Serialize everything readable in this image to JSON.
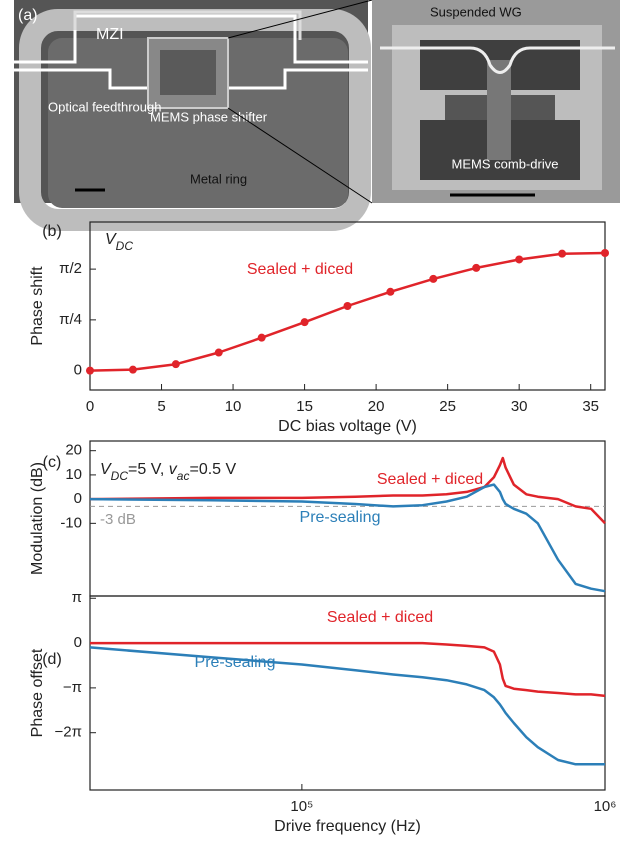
{
  "panel_a": {
    "panel_label": "(a)",
    "labels": [
      "MZI",
      "Optical feedthrough",
      "MEMS phase shifter",
      "Metal ring",
      "Suspended WG",
      "MEMS comb-drive"
    ]
  },
  "chart_data": [
    {
      "type": "line",
      "panel_label": "(b)",
      "annotation": [
        {
          "text": "V",
          "italic": true
        },
        {
          "text": "DC",
          "italic": true,
          "sub": true
        }
      ],
      "x_label": "DC bias voltage (V)",
      "y_label": "Phase shift",
      "x": [
        0,
        3,
        6,
        9,
        12,
        15,
        18,
        21,
        24,
        27,
        30,
        33,
        36
      ],
      "series": [
        {
          "name": "Sealed + diced",
          "color": "#e0242a",
          "markers": true,
          "values": [
            0,
            0.015,
            0.1,
            0.28,
            0.51,
            0.75,
            1.0,
            1.22,
            1.42,
            1.59,
            1.72,
            1.81,
            1.82
          ]
        }
      ],
      "xlim": [
        0,
        36
      ],
      "xticks": [
        0,
        5,
        10,
        15,
        20,
        25,
        30,
        35
      ],
      "ylim": [
        -0.3,
        2.3
      ],
      "yticks": [
        0,
        {
          "value": 0.7854,
          "label": "π/4"
        },
        {
          "value": 1.5708,
          "label": "π/2"
        }
      ]
    },
    {
      "type": "line",
      "panel_label": "(c)",
      "annotation": [
        {
          "text": "V",
          "italic": true
        },
        {
          "text": "DC",
          "italic": true,
          "sub": true
        },
        {
          "text": "=5 V, "
        },
        {
          "text": "v",
          "italic": true
        },
        {
          "text": "ac",
          "italic": true,
          "sub": true
        },
        {
          "text": "=0.5 V"
        }
      ],
      "y_label": "Modulation (dB)",
      "xscale": "log",
      "x": [
        20000,
        50000,
        100000,
        150000,
        200000,
        250000,
        300000,
        350000,
        400000,
        430000,
        450000,
        460000,
        470000,
        500000,
        550000,
        600000,
        700000,
        800000,
        900000,
        1000000
      ],
      "series": [
        {
          "name": "Sealed + diced",
          "color": "#e0242a",
          "values": [
            0,
            0.5,
            0.5,
            1,
            1.5,
            1.5,
            2,
            3,
            5,
            9,
            14,
            17,
            13,
            6,
            2,
            1,
            0,
            -3,
            -4,
            -10
          ]
        },
        {
          "name": "Pre-sealing",
          "color": "#2c7fb8",
          "values": [
            0,
            -0.5,
            -1,
            -2,
            -3,
            -2.5,
            -1,
            1,
            5,
            6,
            3,
            0,
            -2,
            -4,
            -6,
            -10,
            -25,
            -35,
            -37,
            -38
          ]
        }
      ],
      "reference_line": {
        "value": -3,
        "label": "-3 dB",
        "color": "#999999"
      },
      "xlim": [
        20000,
        1000000
      ],
      "ylim": [
        -40,
        24
      ],
      "yticks": [
        -10,
        0,
        10,
        20
      ]
    },
    {
      "type": "line",
      "panel_label": "(d)",
      "x_label": "Drive frequency (Hz)",
      "y_label": "Phase offset",
      "xscale": "log",
      "x": [
        20000,
        50000,
        100000,
        150000,
        200000,
        250000,
        300000,
        350000,
        400000,
        430000,
        450000,
        460000,
        470000,
        500000,
        550000,
        600000,
        700000,
        800000,
        900000,
        1000000
      ],
      "series": [
        {
          "name": "Sealed + diced",
          "color": "#e0242a",
          "values": [
            0,
            0,
            0,
            0,
            0,
            0,
            -0.1,
            -0.2,
            -0.3,
            -0.6,
            -1.5,
            -2.5,
            -3.0,
            -3.2,
            -3.3,
            -3.4,
            -3.5,
            -3.6,
            -3.6,
            -3.7
          ]
        },
        {
          "name": "Pre-sealing",
          "color": "#2c7fb8",
          "values": [
            -0.3,
            -1.0,
            -1.5,
            -1.9,
            -2.2,
            -2.4,
            -2.6,
            -2.9,
            -3.3,
            -3.8,
            -4.3,
            -4.6,
            -4.9,
            -5.6,
            -6.6,
            -7.3,
            -8.2,
            -8.5,
            -8.5,
            -8.5
          ]
        }
      ],
      "xlim": [
        20000,
        1000000
      ],
      "ylim": [
        -10.3,
        3.3
      ],
      "xticks": [
        {
          "value": 100000,
          "label": "10⁵"
        },
        {
          "value": 1000000,
          "label": "10⁶"
        }
      ],
      "yticks": [
        {
          "value": 3.1416,
          "label": "π"
        },
        0,
        {
          "value": -3.1416,
          "label": "−π"
        },
        {
          "value": -6.2832,
          "label": "−2π"
        }
      ]
    }
  ]
}
